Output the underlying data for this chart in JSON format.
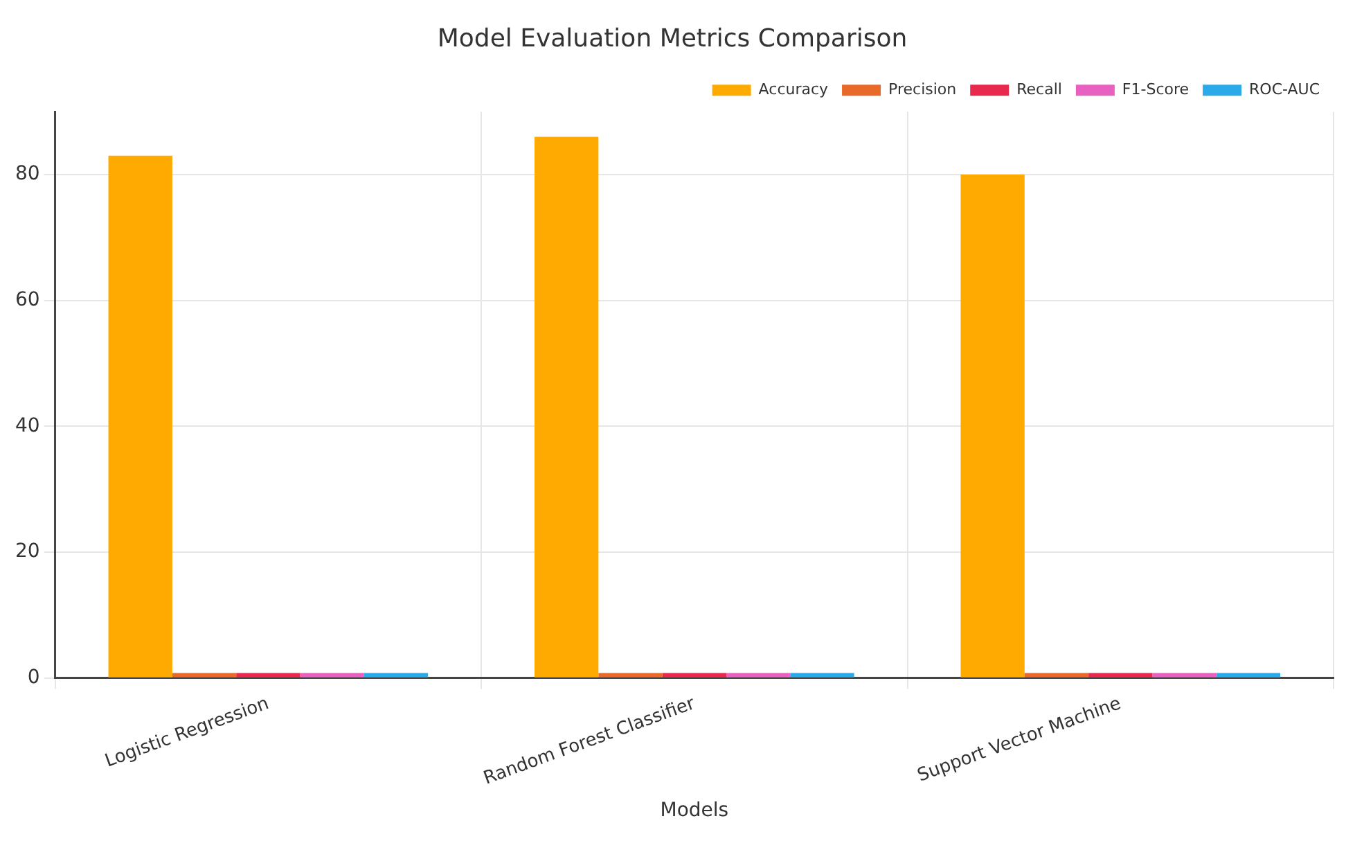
{
  "chart_data": {
    "type": "bar",
    "title": "Model Evaluation Metrics Comparison",
    "xlabel": "Models",
    "categories": [
      "Logistic Regression",
      "Random Forest Classifier",
      "Support Vector Machine"
    ],
    "series": [
      {
        "name": "Accuracy",
        "color": "#ffaa00",
        "values": [
          83,
          86,
          80
        ]
      },
      {
        "name": "Precision",
        "color": "#e8692a",
        "values": [
          0.8,
          0.8,
          0.8
        ]
      },
      {
        "name": "Recall",
        "color": "#e8294d",
        "values": [
          0.8,
          0.8,
          0.8
        ]
      },
      {
        "name": "F1-Score",
        "color": "#e860c0",
        "values": [
          0.8,
          0.8,
          0.8
        ]
      },
      {
        "name": "ROC-AUC",
        "color": "#2aaae8",
        "values": [
          0.8,
          0.8,
          0.8
        ]
      }
    ],
    "ylim": [
      0,
      90
    ],
    "yticks": [
      0,
      20,
      40,
      60,
      80
    ],
    "grid": true,
    "legend": "top right"
  }
}
